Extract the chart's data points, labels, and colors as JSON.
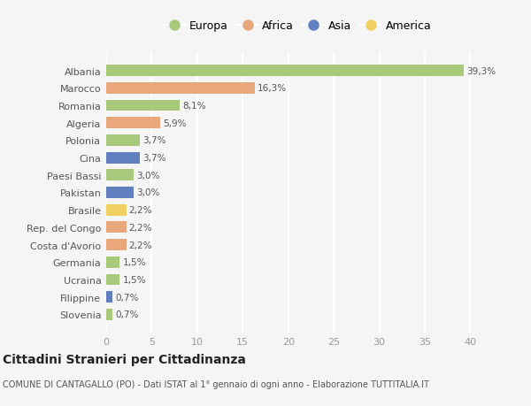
{
  "countries": [
    "Albania",
    "Marocco",
    "Romania",
    "Algeria",
    "Polonia",
    "Cina",
    "Paesi Bassi",
    "Pakistan",
    "Brasile",
    "Rep. del Congo",
    "Costa d'Avorio",
    "Germania",
    "Ucraina",
    "Filippine",
    "Slovenia"
  ],
  "values": [
    39.3,
    16.3,
    8.1,
    5.9,
    3.7,
    3.7,
    3.0,
    3.0,
    2.2,
    2.2,
    2.2,
    1.5,
    1.5,
    0.7,
    0.7
  ],
  "labels": [
    "39,3%",
    "16,3%",
    "8,1%",
    "5,9%",
    "3,7%",
    "3,7%",
    "3,0%",
    "3,0%",
    "2,2%",
    "2,2%",
    "2,2%",
    "1,5%",
    "1,5%",
    "0,7%",
    "0,7%"
  ],
  "continents": [
    "Europa",
    "Africa",
    "Europa",
    "Africa",
    "Europa",
    "Asia",
    "Europa",
    "Asia",
    "America",
    "Africa",
    "Africa",
    "Europa",
    "Europa",
    "Asia",
    "Europa"
  ],
  "continent_colors": {
    "Europa": "#a8c87a",
    "Africa": "#e8a87c",
    "Asia": "#6080c0",
    "America": "#f0d060"
  },
  "legend_order": [
    "Europa",
    "Africa",
    "Asia",
    "America"
  ],
  "bg_color": "#f5f5f5",
  "grid_color": "#ffffff",
  "title": "Cittadini Stranieri per Cittadinanza",
  "subtitle": "COMUNE DI CANTAGALLO (PO) - Dati ISTAT al 1° gennaio di ogni anno - Elaborazione TUTTITALIA.IT",
  "xlim": [
    0,
    42
  ],
  "xticks": [
    0,
    5,
    10,
    15,
    20,
    25,
    30,
    35,
    40
  ],
  "bar_height": 0.65,
  "label_fontsize": 7.5,
  "ytick_fontsize": 8,
  "xtick_fontsize": 8,
  "legend_fontsize": 9,
  "title_fontsize": 10,
  "subtitle_fontsize": 7
}
